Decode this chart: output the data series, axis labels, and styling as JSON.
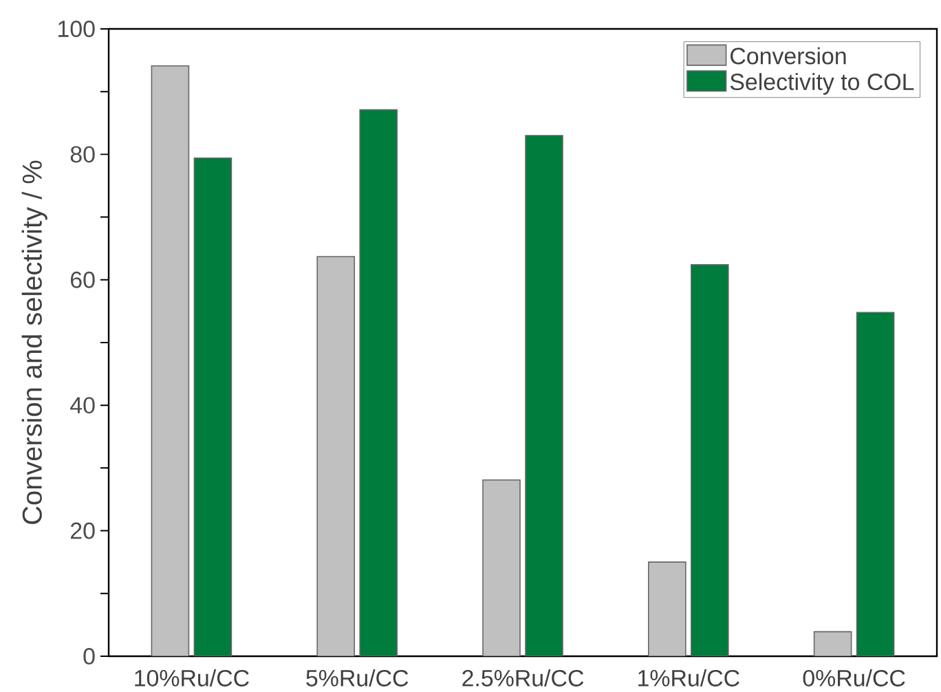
{
  "chart_data": {
    "type": "bar",
    "ylabel": "Conversion and selectivity / %",
    "categories": [
      "10%Ru/CC",
      "5%Ru/CC",
      "2.5%Ru/CC",
      "1%Ru/CC",
      "0%Ru/CC"
    ],
    "series": [
      {
        "name": "Conversion",
        "color": "#c0c0c0",
        "values": [
          94.1,
          63.7,
          28.1,
          15.0,
          3.9
        ]
      },
      {
        "name": "Selectivity to COL",
        "color": "#007c3d",
        "values": [
          79.4,
          87.1,
          83.0,
          62.4,
          54.8
        ]
      }
    ],
    "ylim": [
      0,
      100
    ],
    "yticks": [
      0,
      {
        "value": 10,
        "label": null
      },
      20,
      {
        "value": 30,
        "label": null
      },
      40,
      {
        "value": 50,
        "label": null
      },
      60,
      {
        "value": 70,
        "label": null
      },
      80,
      {
        "value": 90,
        "label": null
      },
      100
    ],
    "legend": "top right",
    "grid": false
  }
}
